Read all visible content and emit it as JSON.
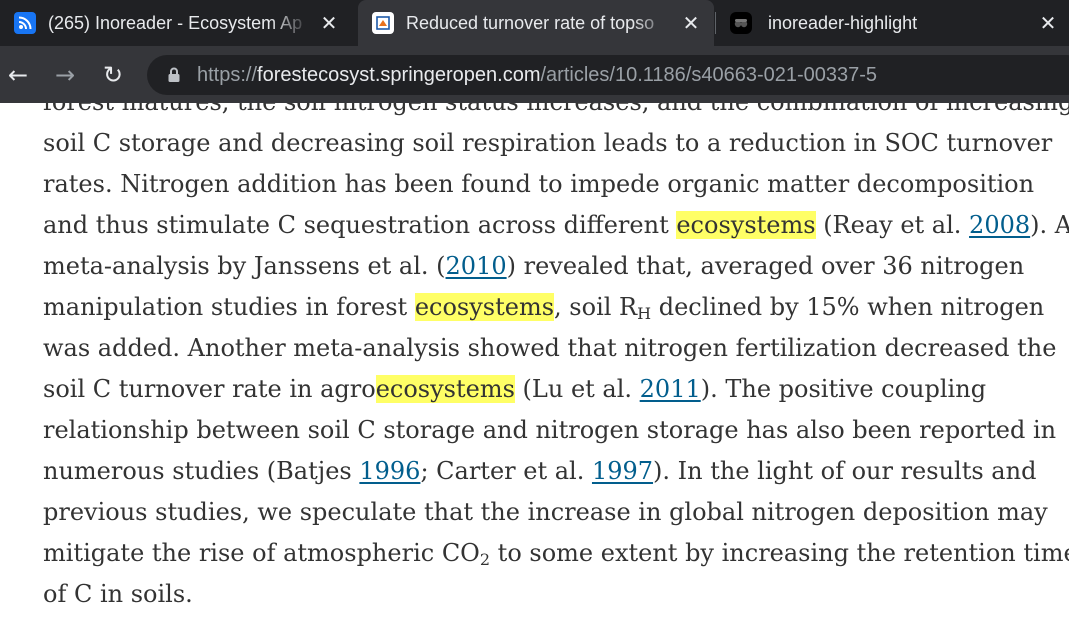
{
  "browser": {
    "tabs": [
      {
        "title": "(265) Inoreader - Ecosystem Ap",
        "favicon": "inoreader-rss-icon",
        "active": false
      },
      {
        "title": "Reduced turnover rate of topso",
        "favicon": "springer-article-icon",
        "active": true
      },
      {
        "title": "inoreader-highlight",
        "favicon": "github-like-icon",
        "active": false
      }
    ],
    "close_glyph": "✕",
    "toolbar": {
      "back": "←",
      "forward": "→",
      "reload": "↻"
    },
    "address": {
      "scheme": "https://",
      "host": "forestecosyst.springeropen.com",
      "path": "/articles/10.1186/s40663-021-00337-5"
    }
  },
  "article": {
    "highlight_color": "#ffff66",
    "link_color": "#025e8d",
    "lines": [
      [
        {
          "t": "forest matures, the soil nitrogen status increases, and the combination of increasing"
        }
      ],
      [
        {
          "t": "soil C storage and decreasing soil respiration leads to a reduction in SOC turnover"
        }
      ],
      [
        {
          "t": "rates. Nitrogen addition has been found to impede organic matter decomposition"
        }
      ],
      [
        {
          "t": "and thus stimulate C sequestration across different "
        },
        {
          "t": "ecosystems",
          "hl": true
        },
        {
          "t": " (Reay et al. "
        },
        {
          "t": "2008",
          "ref": true
        },
        {
          "t": "). A"
        }
      ],
      [
        {
          "t": "meta-analysis by Janssens et al. ("
        },
        {
          "t": "2010",
          "ref": true
        },
        {
          "t": ") revealed that, averaged over 36 nitrogen"
        }
      ],
      [
        {
          "t": "manipulation studies in forest "
        },
        {
          "t": "ecosystems",
          "hl": true
        },
        {
          "t": ", soil R"
        },
        {
          "t": "H",
          "sub": true
        },
        {
          "t": " declined by 15% when nitrogen"
        }
      ],
      [
        {
          "t": "was added. Another meta-analysis showed that nitrogen fertilization decreased the"
        }
      ],
      [
        {
          "t": "soil C turnover rate in agro"
        },
        {
          "t": "ecosystems",
          "hl": true
        },
        {
          "t": " (Lu et al. "
        },
        {
          "t": "2011",
          "ref": true
        },
        {
          "t": "). The positive coupling"
        }
      ],
      [
        {
          "t": "relationship between soil C storage and nitrogen storage has also been reported in"
        }
      ],
      [
        {
          "t": "numerous studies (Batjes "
        },
        {
          "t": "1996",
          "ref": true
        },
        {
          "t": "; Carter et al. "
        },
        {
          "t": "1997",
          "ref": true
        },
        {
          "t": "). In the light of our results and"
        }
      ],
      [
        {
          "t": "previous studies, we speculate that the increase in global nitrogen deposition may"
        }
      ],
      [
        {
          "t": "mitigate the rise of atmospheric CO"
        },
        {
          "t": "2",
          "sub": true
        },
        {
          "t": " to some extent by increasing the retention time"
        }
      ],
      [
        {
          "t": "of C in soils."
        }
      ]
    ]
  }
}
